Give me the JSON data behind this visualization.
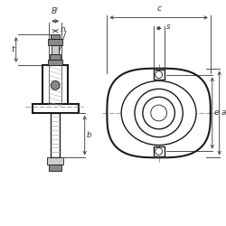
{
  "bg_color": "#ffffff",
  "line_color": "#1a1a1a",
  "dim_color": "#333333",
  "gray_fill": "#888888",
  "light_gray": "#cccccc",
  "fig_width": 2.5,
  "fig_height": 2.5,
  "dpi": 100,
  "labels": {
    "Bi": "Bᴵ",
    "n": "n",
    "t": "t",
    "b": "b",
    "c": "c",
    "s": "s",
    "e": "e",
    "a": "a"
  }
}
